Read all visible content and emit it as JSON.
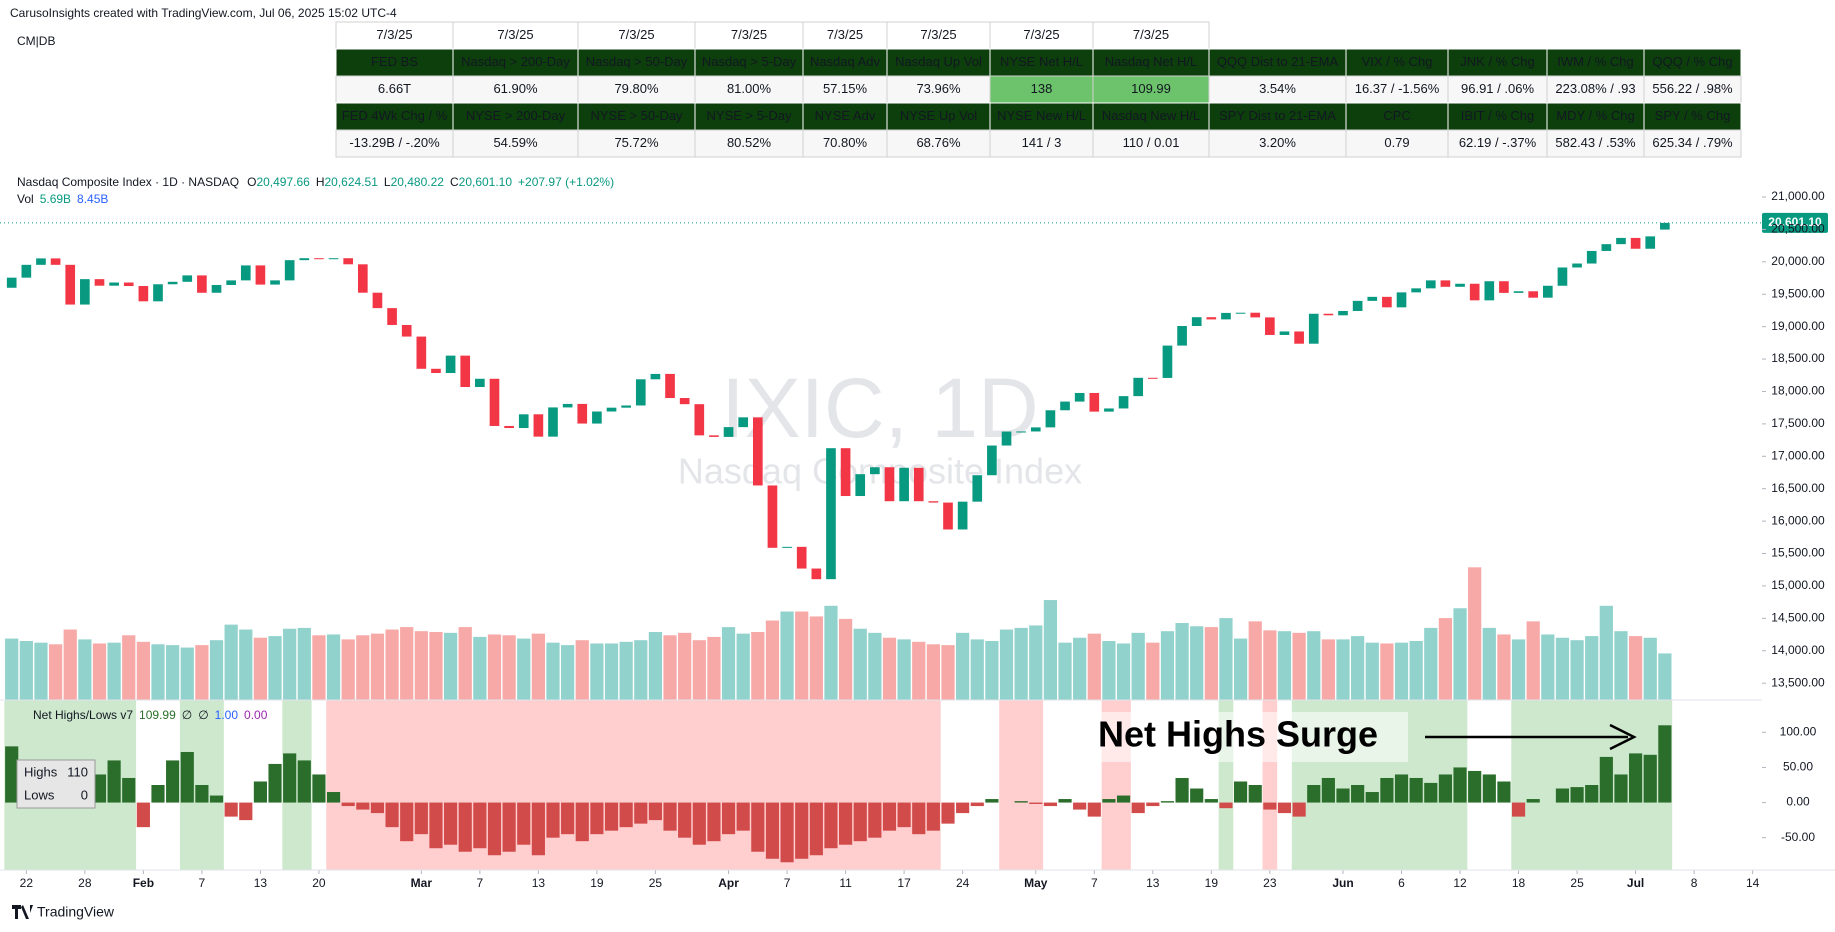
{
  "header": {
    "credit": "CarusoInsights created with TradingView.com, Jul 06, 2025 15:02 UTC-4",
    "layout": "CM|DB",
    "footer": "TradingView"
  },
  "table": {
    "dates": [
      "7/3/25",
      "7/3/25",
      "7/3/25",
      "7/3/25",
      "7/3/25",
      "7/3/25",
      "7/3/25",
      "7/3/25"
    ],
    "rows": [
      [
        "FED BS",
        "Nasdaq > 200-Day",
        "Nasdaq > 50-Day",
        "Nasdaq > 5-Day",
        "Nasdaq Adv",
        "Nasdaq Up Vol",
        "NYSE Net H/L",
        "Nasdaq Net H/L",
        "QQQ Dist to 21-EMA",
        "VIX / % Chg",
        "JNK / % Chg",
        "IWM / % Chg",
        "QQQ / % Chg"
      ],
      [
        "6.66T",
        "61.90%",
        "79.80%",
        "81.00%",
        "57.15%",
        "73.96%",
        "138",
        "109.99",
        "3.54%",
        "16.37 / -1.56%",
        "96.91 / .06%",
        "223.08% / .93",
        "556.22 / .98%"
      ],
      [
        "FED 4Wk Chg / %",
        "NYSE > 200-Day",
        "NYSE > 50-Day",
        "NYSE  > 5-Day",
        "NYSE Adv",
        "NYSE Up Vol",
        "NYSE New H/L",
        "Nasdaq New H/L",
        "SPY Dist to 21-EMA",
        "CPC",
        "IBIT / % Chg",
        "MDY / % Chg",
        "SPY / % Chg"
      ],
      [
        "-13.29B / -.20%",
        "54.59%",
        "75.72%",
        "80.52%",
        "70.80%",
        "68.76%",
        "141 / 3",
        "110 / 0.01",
        "3.20%",
        "0.79",
        "62.19 / -.37%",
        "582.43 / .53%",
        "625.34 / .79%"
      ]
    ],
    "header_fill": "#0c3f0c",
    "value_fills": [
      [
        "#f7f7f7",
        "#f7f7f7",
        "#f7f7f7",
        "#f7f7f7",
        "#f7f7f7",
        "#f7f7f7",
        "#6cc36c",
        "#6cc36c",
        "#f7f7f7",
        "#f7f7f7",
        "#f7f7f7",
        "#f7f7f7",
        "#f7f7f7"
      ],
      [
        "#f7f7f7",
        "#f7f7f7",
        "#f7f7f7",
        "#f7f7f7",
        "#f7f7f7",
        "#f7f7f7",
        "#f7f7f7",
        "#f7f7f7",
        "#f7f7f7",
        "#f7f7f7",
        "#f7f7f7",
        "#f7f7f7",
        "#f7f7f7"
      ]
    ],
    "value_colors": [
      [
        "#333333",
        "#333333",
        "#333333",
        "#333333",
        "#333333",
        "#333333",
        "#333333",
        "#333333",
        "#1f9d3a",
        "#e53935",
        "#1f9d3a",
        "#1f9d3a",
        "#1f9d3a"
      ],
      [
        "#e53935",
        "#333333",
        "#333333",
        "#333333",
        "#333333",
        "#333333",
        "#333333",
        "#333333",
        "#1f9d3a",
        "#333333",
        "#e53935",
        "#1f9d3a",
        "#1f9d3a"
      ]
    ]
  },
  "chart_data": {
    "type": "candlestick",
    "title": "Nasdaq Composite Index · 1D · NASDAQ",
    "ohlc_legend": [
      {
        "label": "O",
        "value": "20,497.66"
      },
      {
        "label": "H",
        "value": "20,624.51"
      },
      {
        "label": "L",
        "value": "20,480.22"
      },
      {
        "label": "C",
        "value": "20,601.10"
      }
    ],
    "change": "+207.97 (+1.02%)",
    "volume_legend": [
      "Vol",
      "5.69B",
      "8.45B"
    ],
    "watermark": "IXIC, 1D",
    "watermark_subtitle": "Nasdaq Composite Index",
    "last_price_label": "20,601.10",
    "up_color": "#089981",
    "down_color": "#f23645",
    "volume_up_color": "#92d2cc",
    "volume_down_color": "#f7a9a7",
    "xlim": [
      -0.8,
      119.64
    ],
    "xticks": [
      {
        "value": 1,
        "label": "22"
      },
      {
        "value": 5,
        "label": "28"
      },
      {
        "value": 9,
        "label": "Feb"
      },
      {
        "value": 13,
        "label": "7"
      },
      {
        "value": 17,
        "label": "13"
      },
      {
        "value": 21,
        "label": "20"
      },
      {
        "value": 28,
        "label": "Mar"
      },
      {
        "value": 32,
        "label": "7"
      },
      {
        "value": 36,
        "label": "13"
      },
      {
        "value": 40,
        "label": "19"
      },
      {
        "value": 44,
        "label": "25"
      },
      {
        "value": 49,
        "label": "Apr"
      },
      {
        "value": 53,
        "label": "7"
      },
      {
        "value": 57,
        "label": "11"
      },
      {
        "value": 61,
        "label": "17"
      },
      {
        "value": 65,
        "label": "24"
      },
      {
        "value": 70,
        "label": "May"
      },
      {
        "value": 74,
        "label": "7"
      },
      {
        "value": 78,
        "label": "13"
      },
      {
        "value": 82,
        "label": "19"
      },
      {
        "value": 86,
        "label": "23"
      },
      {
        "value": 91,
        "label": "Jun"
      },
      {
        "value": 95,
        "label": "6"
      },
      {
        "value": 99,
        "label": "12"
      },
      {
        "value": 103,
        "label": "18"
      },
      {
        "value": 107,
        "label": "25"
      },
      {
        "value": 111,
        "label": "Jul"
      },
      {
        "value": 115,
        "label": "8"
      },
      {
        "value": 119,
        "label": "14"
      }
    ],
    "ylim": [
      13240,
      21417
    ],
    "yticks": [
      {
        "value": 13500,
        "label": "13,500.00"
      },
      {
        "value": 14000,
        "label": "14,000.00"
      },
      {
        "value": 14500,
        "label": "14,500.00"
      },
      {
        "value": 15000,
        "label": "15,000.00"
      },
      {
        "value": 15500,
        "label": "15,500.00"
      },
      {
        "value": 16000,
        "label": "16,000.00"
      },
      {
        "value": 16500,
        "label": "16,500.00"
      },
      {
        "value": 17000,
        "label": "17,000.00"
      },
      {
        "value": 17500,
        "label": "17,500.00"
      },
      {
        "value": 18000,
        "label": "18,000.00"
      },
      {
        "value": 18500,
        "label": "18,500.00"
      },
      {
        "value": 19000,
        "label": "19,000.00"
      },
      {
        "value": 19500,
        "label": "19,500.00"
      },
      {
        "value": 20000,
        "label": "20,000.00"
      },
      {
        "value": 20500,
        "label": "20,500.00"
      },
      {
        "value": 21000,
        "label": "21,000.00"
      }
    ],
    "open": [
      19600,
      19756,
      19954,
      20053,
      19954,
      19341,
      19733,
      19632,
      19681,
      19627,
      19391,
      19654,
      19692,
      19791,
      19523,
      19643,
      19714,
      19945,
      19649,
      19714,
      20026,
      20056,
      20041,
      20056,
      19962,
      19524,
      19286,
      19026,
      18847,
      18350,
      18285,
      18553,
      18069,
      18196,
      17468,
      17436,
      17648,
      17303,
      17754,
      17808,
      17505,
      17691,
      17750,
      17784,
      18188,
      18271,
      17899,
      17804,
      17323,
      17299,
      17450,
      17601,
      16550,
      15588,
      15603,
      15268,
      15104,
      17125,
      16387,
      16724,
      16831,
      16307,
      16823,
      16307,
      16286,
      15871,
      16300,
      16708,
      17166,
      17382,
      17383,
      17446,
      17710,
      17844,
      17977,
      17689,
      17738,
      17928,
      18211,
      18209,
      18708,
      19010,
      19146,
      19112,
      19212,
      19215,
      19143,
      18872,
      18926,
      18737,
      19199,
      19175,
      19242,
      19398,
      19460,
      19298,
      19529,
      19591,
      19714,
      19615,
      19662,
      19406,
      19701,
      19521,
      19546,
      19447,
      19631,
      19913,
      19974,
      20168,
      20273,
      20369,
      20202,
      20497.66
    ],
    "close": [
      19756,
      19954,
      20053,
      19954,
      19341,
      19733,
      19632,
      19681,
      19627,
      19391,
      19654,
      19692,
      19791,
      19523,
      19643,
      19714,
      19945,
      19649,
      19714,
      20026,
      20056,
      20041,
      20056,
      19962,
      19524,
      19286,
      19026,
      18847,
      18350,
      18285,
      18553,
      18069,
      18196,
      17468,
      17436,
      17648,
      17303,
      17754,
      17808,
      17505,
      17691,
      17750,
      17784,
      18188,
      18271,
      17899,
      17804,
      17323,
      17299,
      17450,
      17601,
      16550,
      15588,
      15603,
      15268,
      15104,
      17125,
      16387,
      16724,
      16831,
      16307,
      16823,
      16307,
      16286,
      15871,
      16300,
      16708,
      17166,
      17382,
      17383,
      17446,
      17710,
      17844,
      17977,
      17689,
      17738,
      17928,
      18211,
      18209,
      18708,
      19010,
      19146,
      19112,
      19212,
      19215,
      19143,
      18872,
      18926,
      18737,
      19199,
      19175,
      19242,
      19398,
      19460,
      19298,
      19529,
      19591,
      19714,
      19615,
      19662,
      19406,
      19701,
      19521,
      19546,
      19447,
      19631,
      19913,
      19974,
      20168,
      20273,
      20369,
      20202,
      20393,
      20601.1
    ],
    "volume_ylim": [
      0,
      26
    ],
    "volume": [
      7.5,
      7.2,
      7.0,
      6.8,
      8.6,
      7.4,
      6.9,
      7.0,
      7.9,
      7.1,
      6.8,
      6.7,
      6.4,
      6.7,
      7.3,
      9.2,
      8.6,
      7.6,
      7.8,
      8.7,
      8.8,
      7.9,
      8.0,
      7.4,
      7.9,
      8.1,
      8.6,
      8.9,
      8.4,
      8.3,
      8.2,
      8.9,
      7.7,
      8.0,
      7.9,
      7.5,
      8.1,
      7.0,
      6.7,
      7.3,
      6.9,
      6.9,
      7.1,
      7.3,
      8.3,
      7.9,
      8.2,
      7.3,
      7.7,
      8.9,
      8.1,
      8.3,
      9.7,
      10.8,
      10.8,
      10.2,
      11.5,
      9.9,
      8.7,
      8.2,
      7.6,
      7.4,
      7.1,
      6.8,
      6.7,
      8.2,
      7.4,
      7.2,
      8.6,
      8.8,
      9.1,
      12.2,
      7.0,
      7.6,
      8.1,
      7.2,
      6.9,
      8.2,
      7.0,
      8.4,
      9.4,
      9.0,
      8.9,
      10.0,
      7.5,
      9.6,
      8.5,
      8.4,
      8.2,
      8.4,
      7.4,
      7.4,
      7.8,
      7.0,
      6.9,
      7.0,
      7.2,
      8.8,
      10.0,
      11.2,
      16.2,
      8.8,
      8.0,
      7.4,
      9.6,
      8.0,
      7.6,
      7.3,
      7.8,
      11.5,
      8.4,
      7.8,
      7.6,
      5.69
    ],
    "net_highs_lows": {
      "name": "Net Highs/Lows v7",
      "legend_values": [
        "109.99",
        "∅",
        "∅",
        "1.00",
        "0.00"
      ],
      "positive_color": "#2b6e2b",
      "negative_color": "#d24b4b",
      "ylim": [
        -96,
        146
      ],
      "yticks": [
        {
          "value": 100,
          "label": "100.00"
        },
        {
          "value": 50,
          "label": "50.00"
        },
        {
          "value": 0,
          "label": "0.00"
        },
        {
          "value": -50,
          "label": "-50.00"
        }
      ],
      "values": [
        80,
        55,
        40,
        45,
        25,
        45,
        40,
        60,
        35,
        -35,
        25,
        60,
        72,
        25,
        10,
        -20,
        -25,
        30,
        55,
        70,
        60,
        40,
        15,
        -5,
        -10,
        -15,
        -35,
        -55,
        -45,
        -65,
        -60,
        -70,
        -65,
        -75,
        -70,
        -60,
        -75,
        -50,
        -45,
        -55,
        -45,
        -40,
        -35,
        -30,
        -25,
        -40,
        -50,
        -60,
        -55,
        -45,
        -40,
        -70,
        -80,
        -85,
        -80,
        -75,
        -65,
        -60,
        -55,
        -50,
        -40,
        -35,
        -45,
        -40,
        -30,
        -15,
        -5,
        5,
        0,
        2,
        -2,
        -5,
        5,
        -10,
        -20,
        5,
        10,
        -15,
        -5,
        2,
        35,
        20,
        5,
        -8,
        30,
        25,
        -10,
        -15,
        -20,
        25,
        35,
        20,
        25,
        15,
        35,
        40,
        35,
        28,
        40,
        50,
        45,
        40,
        30,
        -20,
        5,
        0,
        20,
        22,
        25,
        65,
        40,
        70,
        68,
        109.99
      ],
      "shading": [
        {
          "start": 0,
          "end": 8,
          "color": "#cde8cd"
        },
        {
          "start": 12,
          "end": 14,
          "color": "#cde8cd"
        },
        {
          "start": 19,
          "end": 20,
          "color": "#cde8cd"
        },
        {
          "start": 22,
          "end": 63,
          "color": "#ffcfcf"
        },
        {
          "start": 68,
          "end": 70,
          "color": "#ffcfcf"
        },
        {
          "start": 75,
          "end": 76,
          "color": "#ffcfcf"
        },
        {
          "start": 83,
          "end": 83,
          "color": "#cde8cd"
        },
        {
          "start": 86,
          "end": 86,
          "color": "#ffcfcf"
        },
        {
          "start": 88,
          "end": 99,
          "color": "#cde8cd"
        },
        {
          "start": 103,
          "end": 113,
          "color": "#cde8cd"
        }
      ],
      "highs_label": "Highs",
      "highs": 110,
      "lows_label": "Lows",
      "lows": 0,
      "annotation": "Net Highs Surge"
    }
  }
}
